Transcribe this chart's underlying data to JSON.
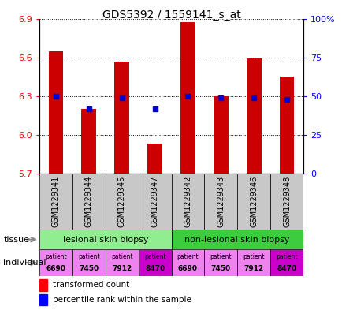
{
  "title": "GDS5392 / 1559141_s_at",
  "samples": [
    "GSM1229341",
    "GSM1229344",
    "GSM1229345",
    "GSM1229347",
    "GSM1229342",
    "GSM1229343",
    "GSM1229346",
    "GSM1229348"
  ],
  "tc_vals": [
    6.65,
    6.2,
    6.57,
    5.93,
    6.87,
    6.3,
    6.59,
    6.45
  ],
  "percentile": [
    50,
    42,
    49,
    42,
    50,
    49,
    49,
    48
  ],
  "ymin": 5.7,
  "ymax": 6.9,
  "y_ticks_left": [
    5.7,
    6.0,
    6.3,
    6.6,
    6.9
  ],
  "y_ticks_right_vals": [
    0,
    25,
    50,
    75,
    100
  ],
  "y_ticks_right_labels": [
    "0",
    "25",
    "50",
    "75",
    "100%"
  ],
  "tissue_groups": [
    {
      "label": "lesional skin biopsy",
      "start": 0,
      "end": 4,
      "color": "#90EE90"
    },
    {
      "label": "non-lesional skin biopsy",
      "start": 4,
      "end": 8,
      "color": "#3DCC3D"
    }
  ],
  "individuals": [
    "6690",
    "7450",
    "7912",
    "8470",
    "6690",
    "7450",
    "7912",
    "8470"
  ],
  "ind_colors": [
    "#EE82EE",
    "#EE82EE",
    "#EE82EE",
    "#CC00CC",
    "#EE82EE",
    "#EE82EE",
    "#EE82EE",
    "#CC00CC"
  ],
  "bar_color": "#CC0000",
  "dot_color": "#0000CC",
  "xtick_bg": "#C8C8C8",
  "legend_red": "transformed count",
  "legend_blue": "percentile rank within the sample"
}
